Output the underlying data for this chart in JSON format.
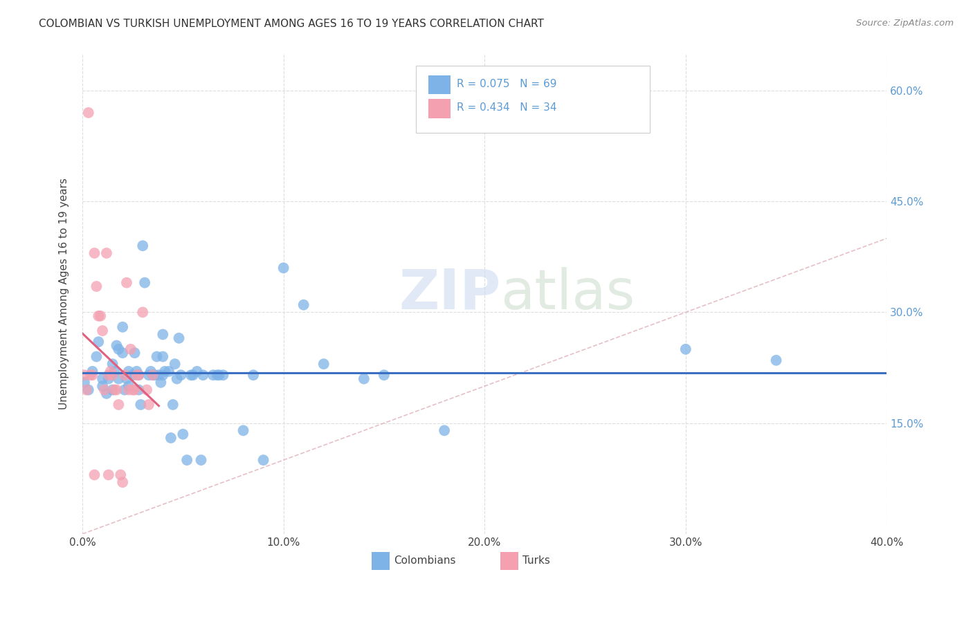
{
  "title": "COLOMBIAN VS TURKISH UNEMPLOYMENT AMONG AGES 16 TO 19 YEARS CORRELATION CHART",
  "source": "Source: ZipAtlas.com",
  "xlabel": "",
  "ylabel": "Unemployment Among Ages 16 to 19 years",
  "xlim": [
    0.0,
    0.4
  ],
  "ylim": [
    0.0,
    0.65
  ],
  "xticks": [
    0.0,
    0.1,
    0.2,
    0.3,
    0.4
  ],
  "xticklabels": [
    "0.0%",
    "10.0%",
    "20.0%",
    "30.0%",
    "40.0%"
  ],
  "yticks": [
    0.0,
    0.15,
    0.3,
    0.45,
    0.6
  ],
  "yticklabels": [
    "",
    "15.0%",
    "30.0%",
    "45.0%",
    "60.0%"
  ],
  "background_color": "#ffffff",
  "grid_color": "#dddddd",
  "colombian_color": "#7EB3E8",
  "turkish_color": "#F4A0B0",
  "colombian_line_color": "#3A6FC4",
  "turkish_line_color": "#E06080",
  "diagonal_color": "#E0B0B8",
  "R_colombian": 0.075,
  "N_colombian": 69,
  "R_turkish": 0.434,
  "N_turkish": 34,
  "colombian_points": [
    [
      0.001,
      0.205
    ],
    [
      0.003,
      0.195
    ],
    [
      0.005,
      0.22
    ],
    [
      0.007,
      0.24
    ],
    [
      0.008,
      0.26
    ],
    [
      0.01,
      0.2
    ],
    [
      0.01,
      0.21
    ],
    [
      0.012,
      0.19
    ],
    [
      0.013,
      0.21
    ],
    [
      0.015,
      0.23
    ],
    [
      0.015,
      0.195
    ],
    [
      0.016,
      0.22
    ],
    [
      0.017,
      0.255
    ],
    [
      0.018,
      0.25
    ],
    [
      0.018,
      0.21
    ],
    [
      0.02,
      0.28
    ],
    [
      0.02,
      0.245
    ],
    [
      0.021,
      0.195
    ],
    [
      0.022,
      0.21
    ],
    [
      0.023,
      0.22
    ],
    [
      0.023,
      0.2
    ],
    [
      0.025,
      0.215
    ],
    [
      0.026,
      0.245
    ],
    [
      0.027,
      0.22
    ],
    [
      0.028,
      0.215
    ],
    [
      0.028,
      0.195
    ],
    [
      0.029,
      0.175
    ],
    [
      0.03,
      0.39
    ],
    [
      0.031,
      0.34
    ],
    [
      0.033,
      0.215
    ],
    [
      0.034,
      0.22
    ],
    [
      0.035,
      0.215
    ],
    [
      0.036,
      0.215
    ],
    [
      0.037,
      0.24
    ],
    [
      0.038,
      0.215
    ],
    [
      0.039,
      0.205
    ],
    [
      0.04,
      0.27
    ],
    [
      0.04,
      0.215
    ],
    [
      0.04,
      0.24
    ],
    [
      0.041,
      0.22
    ],
    [
      0.043,
      0.22
    ],
    [
      0.044,
      0.13
    ],
    [
      0.045,
      0.175
    ],
    [
      0.046,
      0.23
    ],
    [
      0.047,
      0.21
    ],
    [
      0.048,
      0.265
    ],
    [
      0.049,
      0.215
    ],
    [
      0.05,
      0.135
    ],
    [
      0.052,
      0.1
    ],
    [
      0.054,
      0.215
    ],
    [
      0.055,
      0.215
    ],
    [
      0.057,
      0.22
    ],
    [
      0.059,
      0.1
    ],
    [
      0.06,
      0.215
    ],
    [
      0.065,
      0.215
    ],
    [
      0.067,
      0.215
    ],
    [
      0.068,
      0.215
    ],
    [
      0.07,
      0.215
    ],
    [
      0.08,
      0.14
    ],
    [
      0.085,
      0.215
    ],
    [
      0.09,
      0.1
    ],
    [
      0.1,
      0.36
    ],
    [
      0.11,
      0.31
    ],
    [
      0.12,
      0.23
    ],
    [
      0.14,
      0.21
    ],
    [
      0.15,
      0.215
    ],
    [
      0.18,
      0.14
    ],
    [
      0.3,
      0.25
    ],
    [
      0.345,
      0.235
    ]
  ],
  "turkish_points": [
    [
      0.001,
      0.215
    ],
    [
      0.002,
      0.195
    ],
    [
      0.003,
      0.57
    ],
    [
      0.004,
      0.215
    ],
    [
      0.005,
      0.215
    ],
    [
      0.006,
      0.38
    ],
    [
      0.007,
      0.335
    ],
    [
      0.008,
      0.295
    ],
    [
      0.009,
      0.295
    ],
    [
      0.01,
      0.275
    ],
    [
      0.011,
      0.195
    ],
    [
      0.012,
      0.38
    ],
    [
      0.013,
      0.215
    ],
    [
      0.014,
      0.22
    ],
    [
      0.015,
      0.215
    ],
    [
      0.016,
      0.195
    ],
    [
      0.017,
      0.195
    ],
    [
      0.018,
      0.175
    ],
    [
      0.019,
      0.08
    ],
    [
      0.02,
      0.07
    ],
    [
      0.021,
      0.215
    ],
    [
      0.022,
      0.34
    ],
    [
      0.023,
      0.195
    ],
    [
      0.024,
      0.25
    ],
    [
      0.025,
      0.195
    ],
    [
      0.026,
      0.195
    ],
    [
      0.027,
      0.215
    ],
    [
      0.028,
      0.215
    ],
    [
      0.03,
      0.3
    ],
    [
      0.032,
      0.195
    ],
    [
      0.033,
      0.175
    ],
    [
      0.035,
      0.215
    ],
    [
      0.006,
      0.08
    ],
    [
      0.013,
      0.08
    ]
  ]
}
